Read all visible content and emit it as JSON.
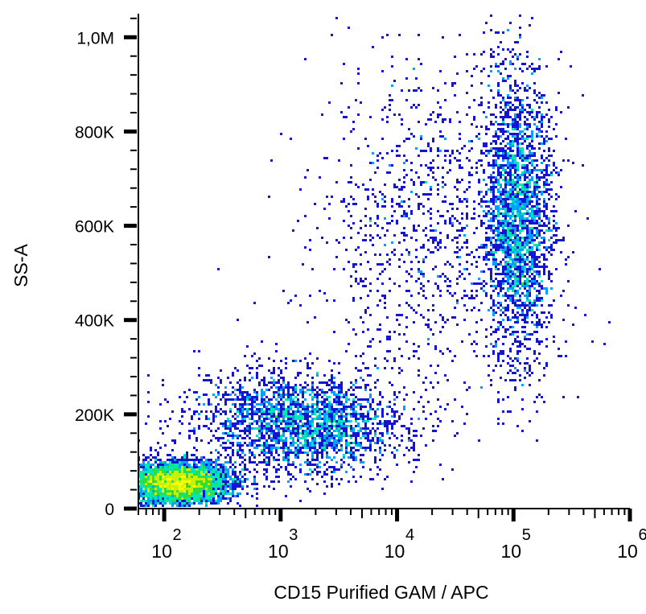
{
  "chart_data": {
    "type": "scatter",
    "subtype": "flow-cytometry-density-dot-plot",
    "xlabel": "CD15 Purified GAM / APC",
    "ylabel": "SS-A",
    "x_scale": "log",
    "xlim": [
      60,
      1000000
    ],
    "ylim": [
      0,
      1050000
    ],
    "x_ticks": [
      {
        "value": 100,
        "base": "10",
        "exp": "2"
      },
      {
        "value": 1000,
        "base": "10",
        "exp": "3"
      },
      {
        "value": 10000,
        "base": "10",
        "exp": "4"
      },
      {
        "value": 100000,
        "base": "10",
        "exp": "5"
      },
      {
        "value": 1000000,
        "base": "10",
        "exp": "6"
      }
    ],
    "y_ticks": [
      {
        "value": 0,
        "label": "0"
      },
      {
        "value": 200000,
        "label": "200K"
      },
      {
        "value": 400000,
        "label": "400K"
      },
      {
        "value": 600000,
        "label": "600K"
      },
      {
        "value": 800000,
        "label": "800K"
      },
      {
        "value": 1000000,
        "label": "1,0M"
      }
    ],
    "populations": [
      {
        "x_center": 130,
        "y_center": 55000,
        "log_x_spread": 0.22,
        "y_spread": 22000,
        "relative_density": "high"
      },
      {
        "x_center": 1500,
        "y_center": 180000,
        "log_x_spread": 0.45,
        "y_spread": 55000,
        "relative_density": "medium"
      },
      {
        "x_center": 110000,
        "y_center": 620000,
        "log_x_spread": 0.15,
        "y_spread": 150000,
        "relative_density": "medium"
      },
      {
        "x_center": 20000,
        "y_center": 600000,
        "log_x_spread": 0.5,
        "y_spread": 180000,
        "relative_density": "low"
      }
    ],
    "density_colors": [
      "#1414d2",
      "#00a0ff",
      "#00e6b4",
      "#32dc32",
      "#c8f000",
      "#ffff00"
    ],
    "grid": false,
    "legend": "none"
  }
}
